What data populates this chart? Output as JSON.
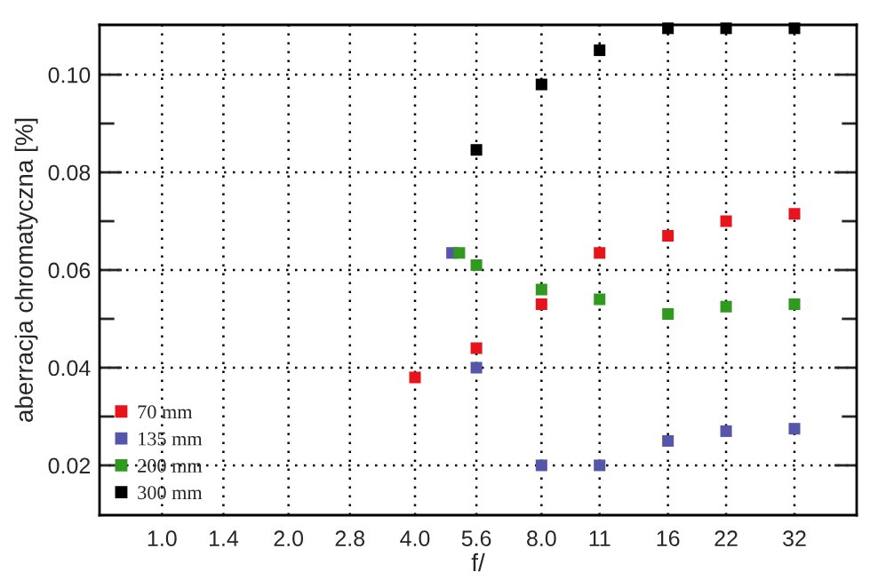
{
  "chart_data": {
    "type": "scatter",
    "xlabel": "f/",
    "ylabel": "aberracja chromatyczna [%]",
    "log": "x",
    "xlim": [
      0.71,
      45
    ],
    "ylim": [
      0.0098,
      0.1102
    ],
    "xticks": [
      {
        "value": 1,
        "label": "1.0"
      },
      1.4,
      {
        "value": 2,
        "label": "2.0"
      },
      2.8,
      {
        "value": 4,
        "label": "4.0"
      },
      5.6,
      {
        "value": 8,
        "label": "8.0"
      },
      11,
      16,
      22,
      32
    ],
    "yticks": [
      {
        "value": 0.02,
        "label": "0.02"
      },
      {
        "value": 0.03,
        "label": null
      },
      {
        "value": 0.04,
        "label": "0.04"
      },
      {
        "value": 0.05,
        "label": null
      },
      {
        "value": 0.06,
        "label": "0.06"
      },
      {
        "value": 0.07,
        "label": null
      },
      {
        "value": 0.08,
        "label": "0.08"
      },
      {
        "value": 0.09,
        "label": null
      },
      {
        "value": 0.1,
        "label": "0.10"
      }
    ],
    "grid": true,
    "legend": "bottom left",
    "marker": "square",
    "series": [
      {
        "name": "70 mm",
        "color": "#e8141c",
        "x": [
          4,
          5.6,
          8,
          11,
          16,
          22,
          32
        ],
        "values": [
          0.038,
          0.044,
          0.053,
          0.0635,
          0.067,
          0.07,
          0.0715
        ]
      },
      {
        "name": "135 mm",
        "color": "#5555aa",
        "x": [
          4.9,
          5.6,
          8,
          11,
          16,
          22,
          32
        ],
        "values": [
          0.0635,
          0.04,
          0.02,
          0.02,
          0.025,
          0.027,
          0.0275
        ]
      },
      {
        "name": "200 mm",
        "color": "#309a20",
        "x": [
          5.1,
          5.6,
          8,
          11,
          16,
          22,
          32
        ],
        "values": [
          0.0635,
          0.061,
          0.056,
          0.054,
          0.051,
          0.0525,
          0.053
        ]
      },
      {
        "name": "300 mm",
        "color": "#000000",
        "x": [
          5.6,
          8,
          11,
          16,
          22,
          32
        ],
        "values": [
          0.0846,
          0.098,
          0.105,
          0.1095,
          0.1095,
          0.1095
        ]
      }
    ]
  }
}
